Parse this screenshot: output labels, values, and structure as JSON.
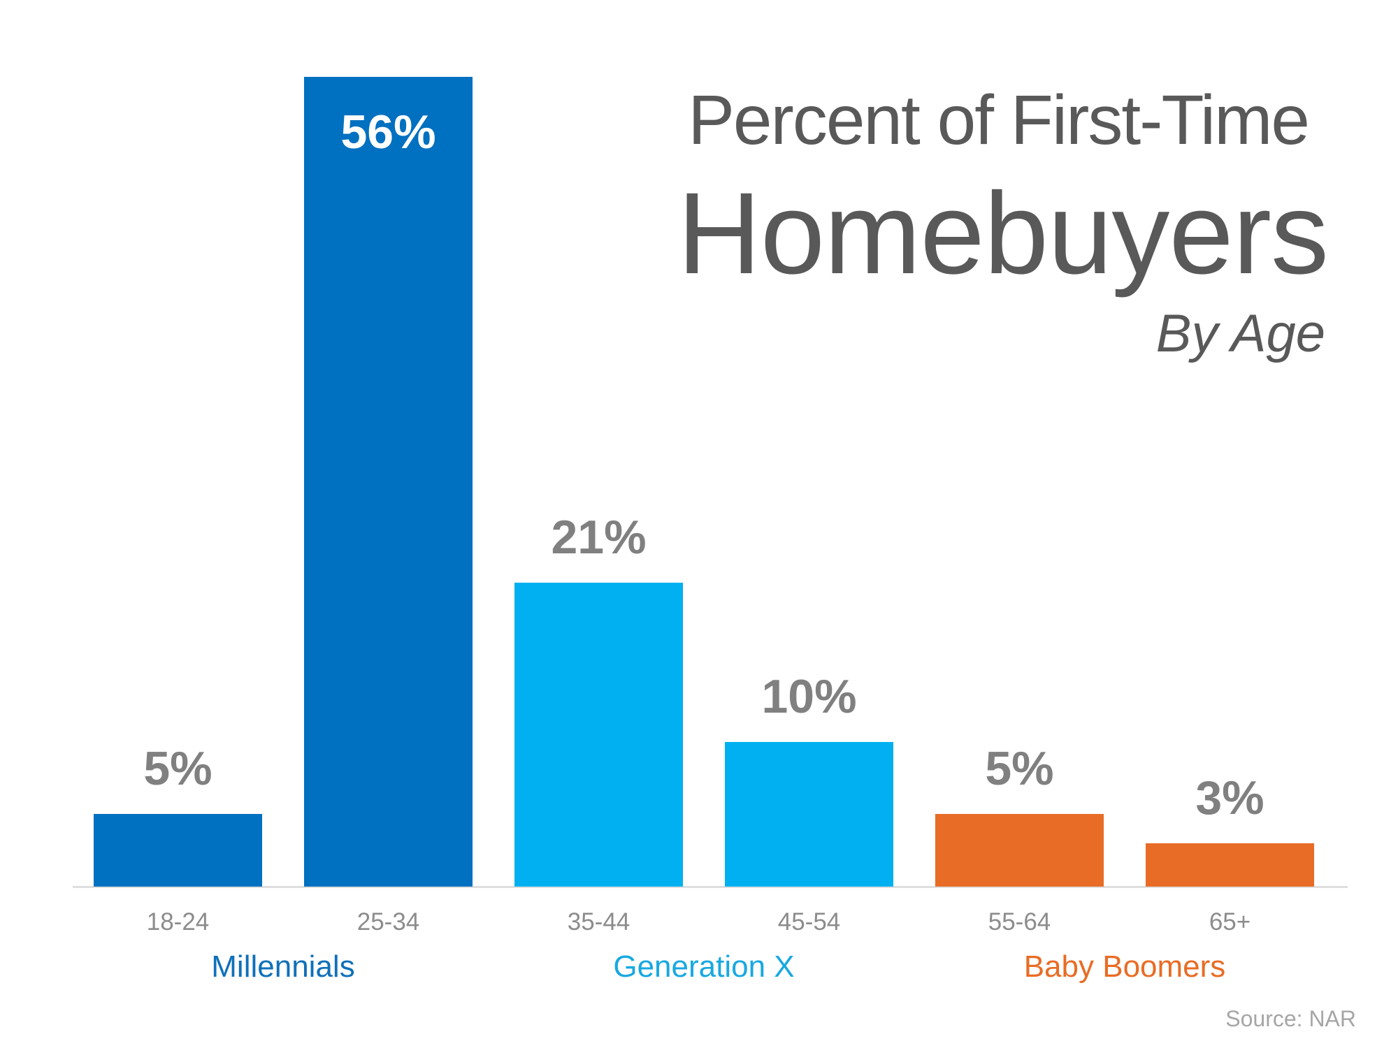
{
  "title": {
    "line1": "Percent of First-Time",
    "line2": "Homebuyers",
    "line3": "By Age"
  },
  "bars": [
    {
      "age": "18-24",
      "value": 5,
      "label": "5%",
      "group": "Millennials",
      "color": "#0070c0"
    },
    {
      "age": "25-34",
      "value": 56,
      "label": "56%",
      "group": "Millennials",
      "color": "#0070c0"
    },
    {
      "age": "35-44",
      "value": 21,
      "label": "21%",
      "group": "Generation X",
      "color": "#00b0f0"
    },
    {
      "age": "45-54",
      "value": 10,
      "label": "10%",
      "group": "Generation X",
      "color": "#00b0f0"
    },
    {
      "age": "55-64",
      "value": 5,
      "label": "5%",
      "group": "Baby Boomers",
      "color": "#e86c25"
    },
    {
      "age": "65+",
      "value": 3,
      "label": "3%",
      "group": "Baby Boomers",
      "color": "#e86c25"
    }
  ],
  "groups": [
    {
      "name": "Millennials",
      "color": "#1070b8"
    },
    {
      "name": "Generation X",
      "color": "#18a8e0"
    },
    {
      "name": "Baby Boomers",
      "color": "#e86c25"
    }
  ],
  "source": "Source: NAR",
  "chart_data": {
    "type": "bar",
    "title": "Percent of First-Time Homebuyers By Age",
    "categories": [
      "18-24",
      "25-34",
      "35-44",
      "45-54",
      "55-64",
      "65+"
    ],
    "values": [
      5,
      56,
      21,
      10,
      5,
      3
    ],
    "value_unit": "%",
    "groups": [
      {
        "name": "Millennials",
        "categories": [
          "18-24",
          "25-34"
        ],
        "color": "#0070c0"
      },
      {
        "name": "Generation X",
        "categories": [
          "35-44",
          "45-54"
        ],
        "color": "#00b0f0"
      },
      {
        "name": "Baby Boomers",
        "categories": [
          "55-64",
          "65+"
        ],
        "color": "#e86c25"
      }
    ],
    "xlabel": "",
    "ylabel": "",
    "ylim": [
      0,
      56
    ],
    "grid": false,
    "legend": "group labels below x-axis",
    "data_labels": [
      "5%",
      "56%",
      "21%",
      "10%",
      "5%",
      "3%"
    ],
    "annotations": [
      "Source: NAR"
    ]
  }
}
